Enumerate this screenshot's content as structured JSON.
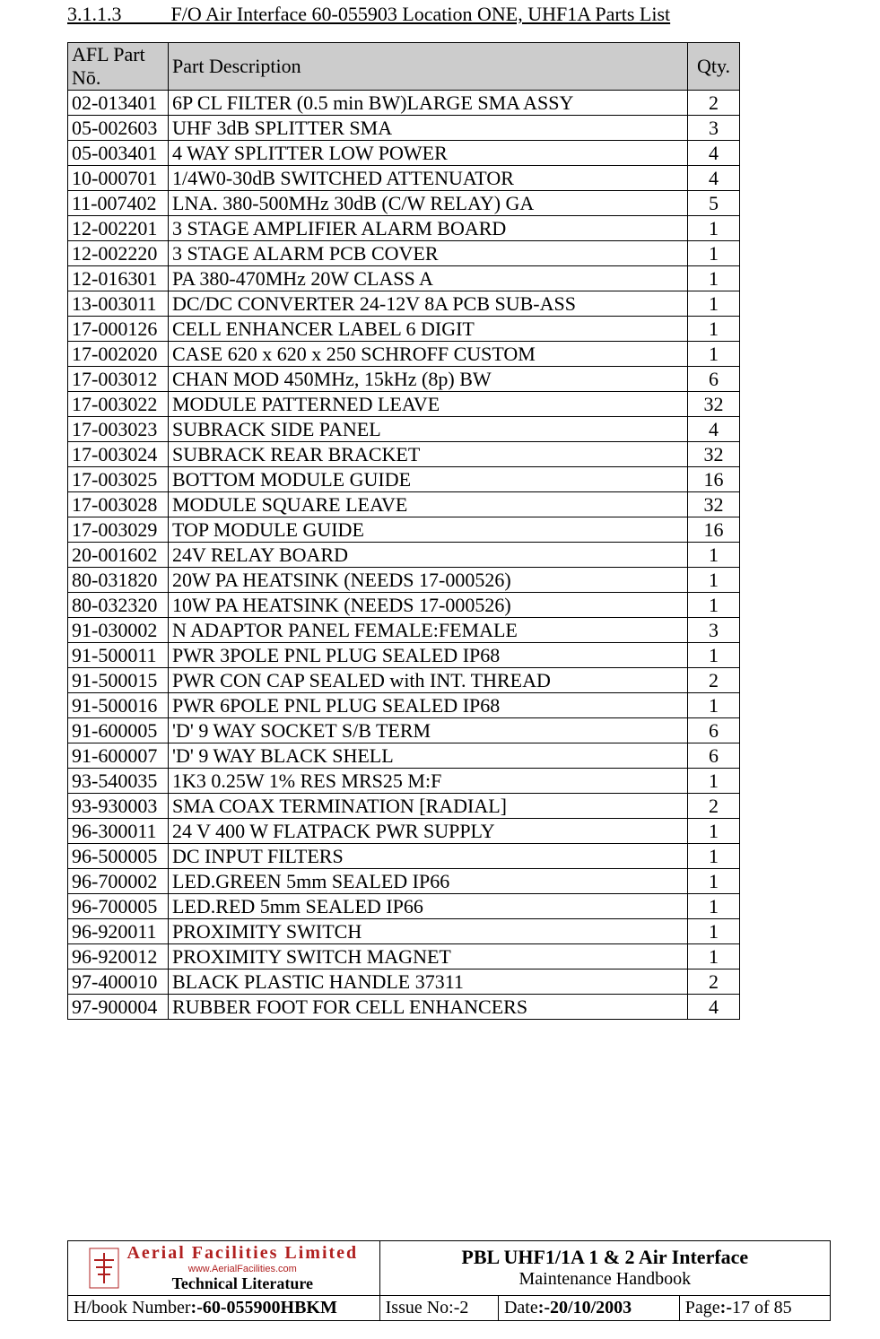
{
  "heading": {
    "number": "3.1.1.3",
    "title": "F/O Air Interface 60-055903 Location ONE, UHF1A Parts List"
  },
  "table": {
    "headers": {
      "partno": "AFL Part Nō.",
      "desc": "Part Description",
      "qty": "Qty."
    },
    "header_bg": "#cccccc",
    "rows": [
      {
        "partno": "02-013401",
        "desc": "6P CL FILTER (0.5 min BW)LARGE SMA ASSY",
        "qty": "2"
      },
      {
        "partno": "05-002603",
        "desc": "UHF 3dB SPLITTER SMA",
        "qty": "3"
      },
      {
        "partno": "05-003401",
        "desc": "4 WAY SPLITTER LOW POWER",
        "qty": "4"
      },
      {
        "partno": "10-000701",
        "desc": "1/4W0-30dB SWITCHED ATTENUATOR",
        "qty": "4"
      },
      {
        "partno": "11-007402",
        "desc": "LNA. 380-500MHz 30dB (C/W RELAY) GA",
        "qty": "5"
      },
      {
        "partno": "12-002201",
        "desc": "3 STAGE AMPLIFIER ALARM BOARD",
        "qty": "1"
      },
      {
        "partno": "12-002220",
        "desc": "3 STAGE ALARM PCB COVER",
        "qty": "1"
      },
      {
        "partno": "12-016301",
        "desc": "PA 380-470MHz 20W CLASS A",
        "qty": "1"
      },
      {
        "partno": "13-003011",
        "desc": "DC/DC CONVERTER 24-12V 8A PCB SUB-ASS",
        "qty": "1"
      },
      {
        "partno": "17-000126",
        "desc": "CELL ENHANCER LABEL 6 DIGIT",
        "qty": "1"
      },
      {
        "partno": "17-002020",
        "desc": "CASE 620 x 620 x 250 SCHROFF CUSTOM",
        "qty": "1"
      },
      {
        "partno": "17-003012",
        "desc": "CHAN MOD 450MHz, 15kHz (8p) BW",
        "qty": "6"
      },
      {
        "partno": "17-003022",
        "desc": "MODULE PATTERNED LEAVE",
        "qty": "32"
      },
      {
        "partno": "17-003023",
        "desc": "SUBRACK SIDE PANEL",
        "qty": "4"
      },
      {
        "partno": "17-003024",
        "desc": "SUBRACK REAR BRACKET",
        "qty": "32"
      },
      {
        "partno": "17-003025",
        "desc": "BOTTOM MODULE GUIDE",
        "qty": "16"
      },
      {
        "partno": "17-003028",
        "desc": "MODULE SQUARE LEAVE",
        "qty": "32"
      },
      {
        "partno": "17-003029",
        "desc": "TOP MODULE GUIDE",
        "qty": "16"
      },
      {
        "partno": "20-001602",
        "desc": "24V RELAY BOARD",
        "qty": "1"
      },
      {
        "partno": "80-031820",
        "desc": "20W PA HEATSINK (NEEDS 17-000526)",
        "qty": "1"
      },
      {
        "partno": "80-032320",
        "desc": "10W PA HEATSINK (NEEDS 17-000526)",
        "qty": "1"
      },
      {
        "partno": "91-030002",
        "desc": "N ADAPTOR PANEL FEMALE:FEMALE",
        "qty": "3"
      },
      {
        "partno": "91-500011",
        "desc": "PWR 3POLE PNL PLUG SEALED IP68",
        "qty": "1"
      },
      {
        "partno": "91-500015",
        "desc": "PWR CON CAP SEALED with INT. THREAD",
        "qty": "2"
      },
      {
        "partno": "91-500016",
        "desc": "PWR 6POLE PNL PLUG SEALED IP68",
        "qty": "1"
      },
      {
        "partno": "91-600005",
        "desc": "'D' 9 WAY SOCKET S/B TERM",
        "qty": "6"
      },
      {
        "partno": "91-600007",
        "desc": "'D' 9 WAY BLACK SHELL",
        "qty": "6"
      },
      {
        "partno": "93-540035",
        "desc": "1K3 0.25W 1% RES MRS25 M:F",
        "qty": "1"
      },
      {
        "partno": "93-930003",
        "desc": "SMA COAX TERMINATION [RADIAL]",
        "qty": "2"
      },
      {
        "partno": "96-300011",
        "desc": "24 V 400 W FLATPACK PWR SUPPLY",
        "qty": "1"
      },
      {
        "partno": "96-500005",
        "desc": "DC INPUT FILTERS",
        "qty": "1"
      },
      {
        "partno": "96-700002",
        "desc": "LED.GREEN 5mm SEALED IP66",
        "qty": "1"
      },
      {
        "partno": "96-700005",
        "desc": "LED.RED 5mm SEALED IP66",
        "qty": "1"
      },
      {
        "partno": "96-920011",
        "desc": "PROXIMITY SWITCH",
        "qty": "1"
      },
      {
        "partno": "96-920012",
        "desc": "PROXIMITY SWITCH MAGNET",
        "qty": "1"
      },
      {
        "partno": "97-400010",
        "desc": "BLACK PLASTIC HANDLE 37311",
        "qty": "2"
      },
      {
        "partno": "97-900004",
        "desc": "RUBBER FOOT FOR CELL ENHANCERS",
        "qty": "4"
      }
    ]
  },
  "footer": {
    "brand": "Aerial  Facilities  Limited",
    "url": "www.AerialFacilities.com",
    "tech": "Technical Literature",
    "title1": "PBL UHF1/1A 1 & 2 Air Interface",
    "title2": "Maintenance Handbook",
    "hbook_label": "H/book Number",
    "hbook_value": ":-60-055900HBKM",
    "issue_label": "Issue No:-",
    "issue_value": "2",
    "date_label": "Date",
    "date_value": ":-20/10/2003",
    "page_label": "Page",
    "page_value": ":-",
    "page_num": "17 of 85",
    "brand_color": "#b02020"
  }
}
